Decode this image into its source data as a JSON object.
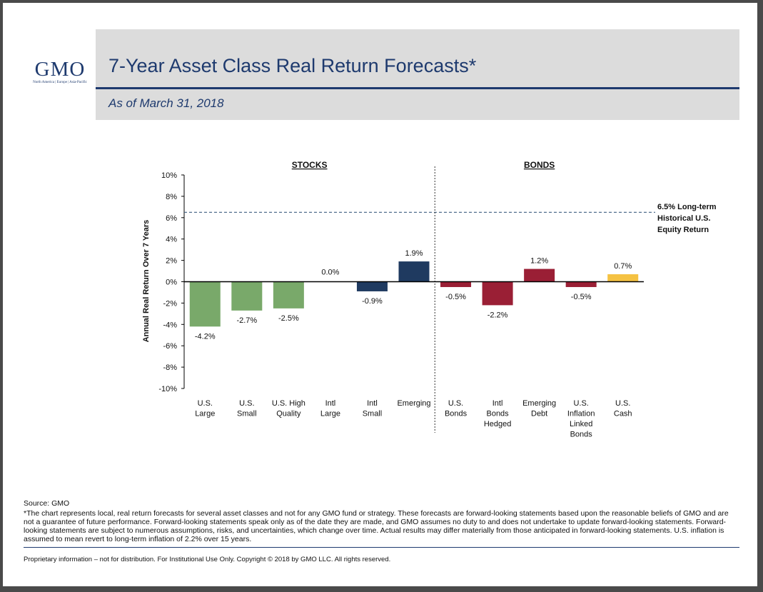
{
  "logo": {
    "name": "GMO",
    "regions": "North America | Europe | Asia-Pacific"
  },
  "header": {
    "title": "7-Year Asset Class Real Return Forecasts*",
    "subtitle": "As of March 31, 2018"
  },
  "colors": {
    "brand_navy": "#1e3a6e",
    "us_stocks_green": "#79a96a",
    "emerging_navy": "#1f3a60",
    "bonds_red": "#9a1f35",
    "cash_yellow": "#f5c242"
  },
  "chart_data": {
    "type": "bar",
    "ylabel": "Annual Real Return Over 7 Years",
    "ylim": [
      -10,
      10
    ],
    "yticks": [
      "10%",
      "8%",
      "6%",
      "4%",
      "2%",
      "0%",
      "-2%",
      "-4%",
      "-6%",
      "-8%",
      "-10%"
    ],
    "ytick_values": [
      10,
      8,
      6,
      4,
      2,
      0,
      -2,
      -4,
      -6,
      -8,
      -10
    ],
    "groups": [
      {
        "label": "STOCKS",
        "count": 6
      },
      {
        "label": "BONDS",
        "count": 5
      }
    ],
    "categories": [
      [
        "U.S.",
        "Large"
      ],
      [
        "U.S.",
        "Small"
      ],
      [
        "U.S. High",
        "Quality"
      ],
      [
        "Intl",
        "Large"
      ],
      [
        "Intl",
        "Small"
      ],
      [
        "Emerging"
      ],
      [
        "U.S.",
        "Bonds"
      ],
      [
        "Intl",
        "Bonds",
        "Hedged"
      ],
      [
        "Emerging",
        "Debt"
      ],
      [
        "U.S.",
        "Inflation",
        "Linked",
        "Bonds"
      ],
      [
        "U.S.",
        "Cash"
      ]
    ],
    "values": [
      -4.2,
      -2.7,
      -2.5,
      0.0,
      -0.9,
      1.9,
      -0.5,
      -2.2,
      1.2,
      -0.5,
      0.7
    ],
    "value_labels": [
      "-4.2%",
      "-2.7%",
      "-2.5%",
      "0.0%",
      "-0.9%",
      "1.9%",
      "-0.5%",
      "-2.2%",
      "1.2%",
      "-0.5%",
      "0.7%"
    ],
    "bar_colors": [
      "#79a96a",
      "#79a96a",
      "#79a96a",
      "#1f3a60",
      "#1f3a60",
      "#1f3a60",
      "#9a1f35",
      "#9a1f35",
      "#9a1f35",
      "#9a1f35",
      "#f5c242"
    ],
    "reference_line": {
      "value": 6.5,
      "label": [
        "6.5% Long-term",
        "Historical U.S.",
        "Equity Return"
      ]
    }
  },
  "notes": {
    "source": "Source: GMO",
    "disclaimer": "*The chart represents local, real return forecasts for several asset classes and not for any GMO fund or strategy.  These forecasts are forward-looking statements based upon the reasonable beliefs of GMO and are not a guarantee of future performance.  Forward-looking statements speak only as of the date they are made, and GMO assumes no duty to and does not undertake to update forward-looking statements.  Forward-looking statements are subject to numerous assumptions, risks, and uncertainties, which change over time.  Actual results may differ materially from those anticipated in forward-looking statements. U.S. inflation is assumed to mean revert to long-term inflation of 2.2% over 15 years.",
    "footer": "Proprietary information – not for distribution. For Institutional Use Only. Copyright © 2018 by GMO LLC.  All rights reserved."
  }
}
